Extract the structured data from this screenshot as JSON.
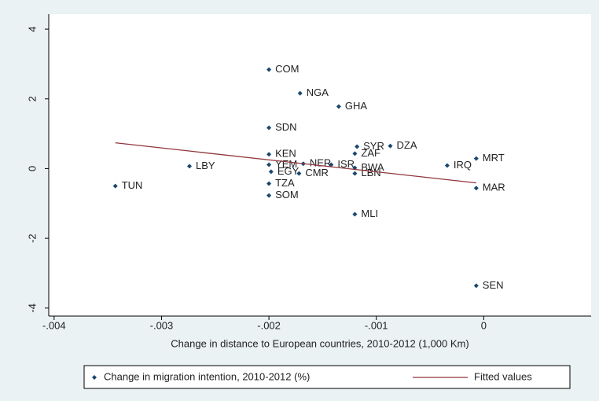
{
  "chart_data": {
    "type": "scatter",
    "xlabel": "Change in distance to European countries, 2010-2012 (1,000 Km)",
    "xlim": [
      -0.00405,
      0.001
    ],
    "ylim": [
      -4.23,
      4.43
    ],
    "xticks": [
      {
        "value": -0.004,
        "label": "-.004"
      },
      {
        "value": -0.003,
        "label": "-.003"
      },
      {
        "value": -0.002,
        "label": "-.002"
      },
      {
        "value": -0.001,
        "label": "-.001"
      },
      0
    ],
    "yticks": [
      -4,
      -2,
      0,
      2,
      4
    ],
    "grid": false,
    "legend": "bottom",
    "series": [
      {
        "name": "Change in migration intention, 2010-2012 (%)",
        "color": "#1a476f",
        "type": "scatter",
        "labels": [
          "COM",
          "NGA",
          "GHA",
          "SDN",
          "SYR",
          "DZA",
          "ZAF",
          "KEN",
          "MRT",
          "LBY",
          "IRQ",
          "YEM",
          "NER",
          "ISR",
          "BWA",
          "LBN",
          "EGY",
          "CMR",
          "TZA",
          "SOM",
          "TUN",
          "MAR",
          "MLI",
          "SEN"
        ],
        "x": [
          -0.002,
          -0.00171,
          -0.00135,
          -0.002,
          -0.00118,
          -0.00087,
          -0.0012,
          -0.002,
          -7e-05,
          -0.00274,
          -0.00034,
          -0.002,
          -0.00168,
          -0.00142,
          -0.0012,
          -0.0012,
          -0.00198,
          -0.00172,
          -0.002,
          -0.002,
          -0.00343,
          -7e-05,
          -0.0012,
          -7e-05
        ],
        "values": [
          2.84,
          2.16,
          1.78,
          1.17,
          0.63,
          0.65,
          0.43,
          0.41,
          0.29,
          0.07,
          0.09,
          0.11,
          0.14,
          0.11,
          0.02,
          -0.14,
          -0.09,
          -0.14,
          -0.43,
          -0.77,
          -0.5,
          -0.56,
          -1.31,
          -3.36
        ]
      },
      {
        "name": "Fitted values",
        "color": "#90353b",
        "type": "line",
        "x": [
          -0.00343,
          -7e-05
        ],
        "values": [
          0.74,
          -0.41
        ]
      }
    ]
  }
}
